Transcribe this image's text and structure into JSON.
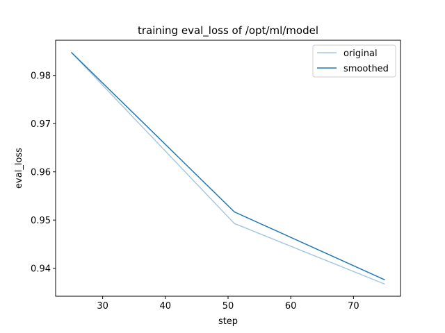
{
  "chart_data": {
    "type": "line",
    "title": "training eval_loss of /opt/ml/model",
    "xlabel": "step",
    "ylabel": "eval_loss",
    "xlim": [
      22.5,
      77.5
    ],
    "ylim": [
      0.9342,
      0.9873
    ],
    "xticks": [
      30,
      40,
      50,
      60,
      70
    ],
    "yticks": [
      0.94,
      0.95,
      0.96,
      0.97,
      0.98
    ],
    "ytick_labels": [
      "0.94",
      "0.95",
      "0.96",
      "0.97",
      "0.98"
    ],
    "grid": false,
    "legend_position": "top-right",
    "series": [
      {
        "name": "original",
        "color": "#a6c8e0",
        "x": [
          25,
          51,
          75
        ],
        "y": [
          0.9848,
          0.9493,
          0.9367
        ]
      },
      {
        "name": "smoothed",
        "color": "#1f77b4",
        "x": [
          25,
          51,
          75
        ],
        "y": [
          0.9848,
          0.9517,
          0.9376
        ]
      }
    ]
  }
}
